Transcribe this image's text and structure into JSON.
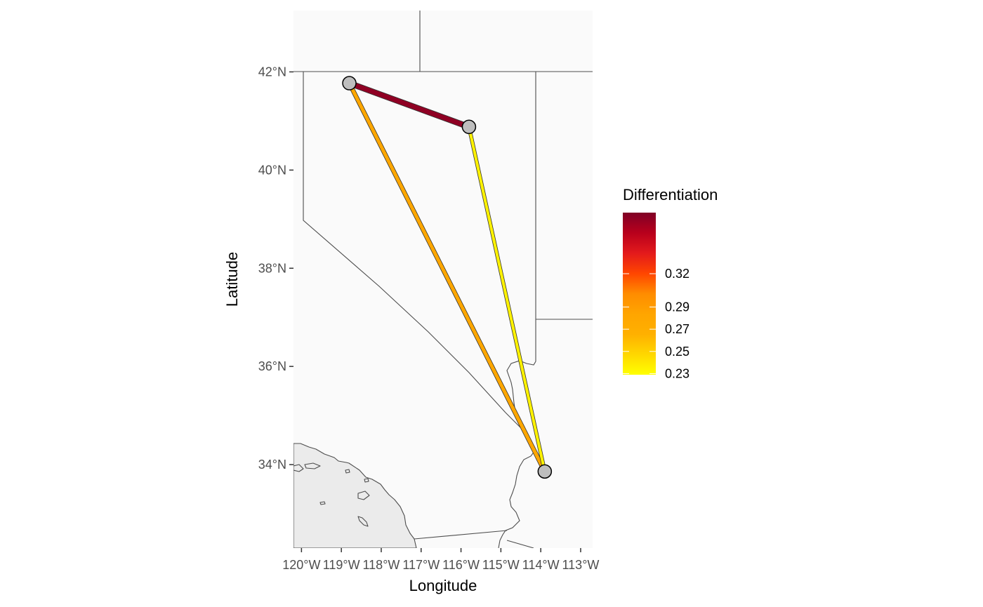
{
  "axes": {
    "x_title": "Longitude",
    "y_title": "Latitude",
    "x_ticks": [
      {
        "value": -120,
        "label": "120°W"
      },
      {
        "value": -119,
        "label": "119°W"
      },
      {
        "value": -118,
        "label": "118°W"
      },
      {
        "value": -117,
        "label": "117°W"
      },
      {
        "value": -116,
        "label": "116°W"
      },
      {
        "value": -115,
        "label": "115°W"
      },
      {
        "value": -114,
        "label": "114°W"
      },
      {
        "value": -113,
        "label": "113°W"
      }
    ],
    "y_ticks": [
      {
        "value": 34,
        "label": "34°N"
      },
      {
        "value": 36,
        "label": "36°N"
      },
      {
        "value": 38,
        "label": "38°N"
      },
      {
        "value": 40,
        "label": "40°N"
      },
      {
        "value": 42,
        "label": "42°N"
      }
    ],
    "xlim": [
      -120.2,
      -112.7
    ],
    "ylim": [
      32.3,
      43.25
    ]
  },
  "legend": {
    "title": "Differentiation",
    "ticks": [
      {
        "value": 0.23,
        "label": "0.23"
      },
      {
        "value": 0.25,
        "label": "0.25"
      },
      {
        "value": 0.27,
        "label": "0.27"
      },
      {
        "value": 0.29,
        "label": "0.29"
      },
      {
        "value": 0.32,
        "label": "0.32"
      }
    ],
    "range": [
      0.229,
      0.375
    ],
    "colors": [
      "#ffff00",
      "#ffd700",
      "#ffb000",
      "#ffa500",
      "#ff8c00",
      "#ff4500",
      "#e31a1c",
      "#b8001c",
      "#800026"
    ]
  },
  "chart_data": {
    "type": "map",
    "points": [
      {
        "id": "A",
        "lon": -118.8,
        "lat": 41.77
      },
      {
        "id": "B",
        "lon": -115.8,
        "lat": 40.88
      },
      {
        "id": "C",
        "lon": -113.9,
        "lat": 33.86
      }
    ],
    "links": [
      {
        "from": "A",
        "to": "B",
        "value": 0.37
      },
      {
        "from": "A",
        "to": "C",
        "value": 0.28
      },
      {
        "from": "B",
        "to": "C",
        "value": 0.235
      }
    ]
  },
  "colors": {
    "panel_background": "#fafafa",
    "ocean": "#ebebeb",
    "border": "#4d4d4d",
    "node_fill": "#bebebe"
  }
}
